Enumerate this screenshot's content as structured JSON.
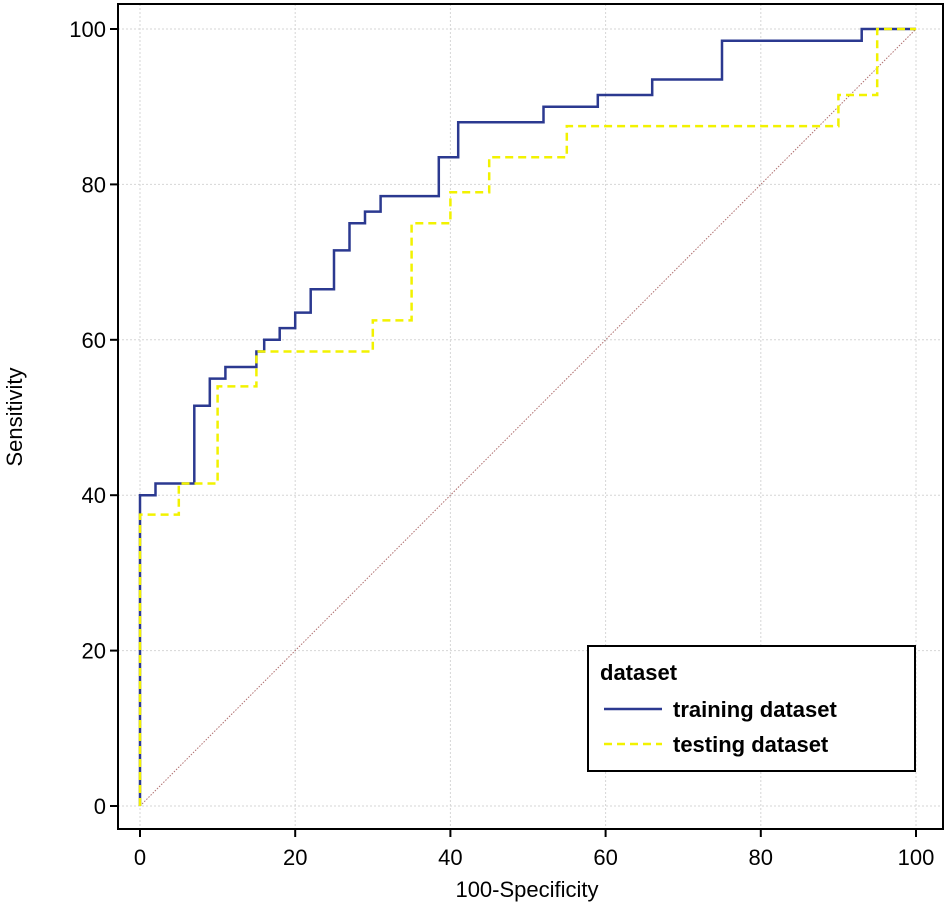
{
  "chart_data": {
    "type": "line",
    "title": "",
    "xlabel": "100-Specificity",
    "ylabel": "Sensitivity",
    "xlim": [
      0,
      100
    ],
    "ylim": [
      0,
      100
    ],
    "xticks": [
      0,
      20,
      40,
      60,
      80,
      100
    ],
    "yticks": [
      0,
      20,
      40,
      60,
      80,
      100
    ],
    "grid": true,
    "legend": {
      "title": "dataset",
      "position": "bottom-right",
      "entries": [
        "training dataset",
        "testing dataset"
      ]
    },
    "series": [
      {
        "name": "training dataset",
        "color": "#2b3990",
        "style": "solid",
        "points": [
          [
            0,
            0
          ],
          [
            0,
            37
          ],
          [
            0,
            40
          ],
          [
            2,
            40
          ],
          [
            2,
            41.5
          ],
          [
            7,
            41.5
          ],
          [
            7,
            51.5
          ],
          [
            9,
            51.5
          ],
          [
            9,
            55
          ],
          [
            11,
            55
          ],
          [
            11,
            56.5
          ],
          [
            15,
            56.5
          ],
          [
            15,
            58.5
          ],
          [
            16,
            58.5
          ],
          [
            16,
            60
          ],
          [
            18,
            60
          ],
          [
            18,
            61.5
          ],
          [
            20,
            61.5
          ],
          [
            20,
            63.5
          ],
          [
            22,
            63.5
          ],
          [
            22,
            66.5
          ],
          [
            25,
            66.5
          ],
          [
            25,
            71.5
          ],
          [
            27,
            71.5
          ],
          [
            27,
            75
          ],
          [
            29,
            75
          ],
          [
            29,
            76.5
          ],
          [
            31,
            76.5
          ],
          [
            31,
            78.5
          ],
          [
            38.5,
            78.5
          ],
          [
            38.5,
            83.5
          ],
          [
            41,
            83.5
          ],
          [
            41,
            88
          ],
          [
            52,
            88
          ],
          [
            52,
            90
          ],
          [
            59,
            90
          ],
          [
            59,
            91.5
          ],
          [
            66,
            91.5
          ],
          [
            66,
            93.5
          ],
          [
            75,
            93.5
          ],
          [
            75,
            98.5
          ],
          [
            93,
            98.5
          ],
          [
            93,
            100
          ],
          [
            100,
            100
          ]
        ]
      },
      {
        "name": "testing dataset",
        "color": "#f2f200",
        "style": "dashed",
        "points": [
          [
            0,
            0
          ],
          [
            0,
            37.5
          ],
          [
            5,
            37.5
          ],
          [
            5,
            41.5
          ],
          [
            10,
            41.5
          ],
          [
            10,
            54
          ],
          [
            15,
            54
          ],
          [
            15,
            58.5
          ],
          [
            30,
            58.5
          ],
          [
            30,
            62.5
          ],
          [
            35,
            62.5
          ],
          [
            35,
            75
          ],
          [
            40,
            75
          ],
          [
            40,
            79
          ],
          [
            45,
            79
          ],
          [
            45,
            83.5
          ],
          [
            55,
            83.5
          ],
          [
            55,
            87.5
          ],
          [
            90,
            87.5
          ],
          [
            90,
            91.5
          ],
          [
            95,
            91.5
          ],
          [
            95,
            100
          ],
          [
            100,
            100
          ]
        ]
      },
      {
        "name": "reference",
        "color": "#b07070",
        "style": "dotted",
        "points": [
          [
            0,
            0
          ],
          [
            100,
            100
          ]
        ]
      }
    ]
  }
}
